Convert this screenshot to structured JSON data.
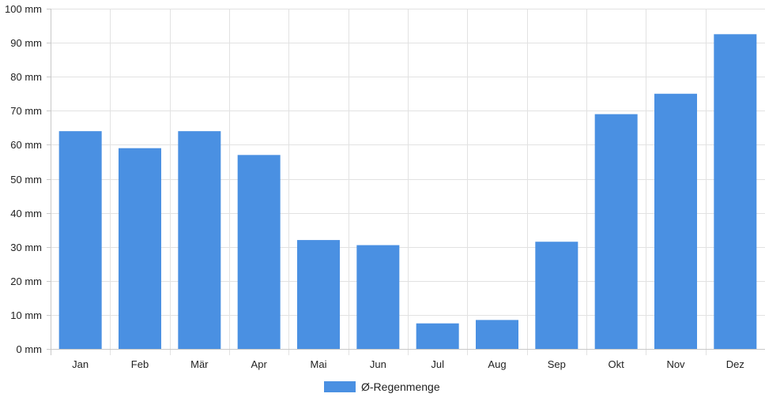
{
  "colors": {
    "bar": "#4a90e2",
    "grid": "#e2e2e2",
    "axis": "#c8c8c8"
  },
  "chart_data": {
    "type": "bar",
    "categories": [
      "Jan",
      "Feb",
      "Mär",
      "Apr",
      "Mai",
      "Jun",
      "Jul",
      "Aug",
      "Sep",
      "Okt",
      "Nov",
      "Dez"
    ],
    "series": [
      {
        "name": "Ø-Regenmenge",
        "values": [
          64,
          59,
          64,
          57,
          32,
          30.5,
          7.5,
          8.5,
          31.5,
          69,
          75,
          92.5
        ]
      }
    ],
    "y_unit": "mm",
    "ylim": [
      0,
      100
    ],
    "yticks": [
      0,
      10,
      20,
      30,
      40,
      50,
      60,
      70,
      80,
      90,
      100
    ],
    "ytick_labels": [
      "0 mm",
      "10 mm",
      "20 mm",
      "30 mm",
      "40 mm",
      "50 mm",
      "60 mm",
      "70 mm",
      "80 mm",
      "90 mm",
      "100 mm"
    ],
    "grid": true,
    "legend": "bottom"
  }
}
